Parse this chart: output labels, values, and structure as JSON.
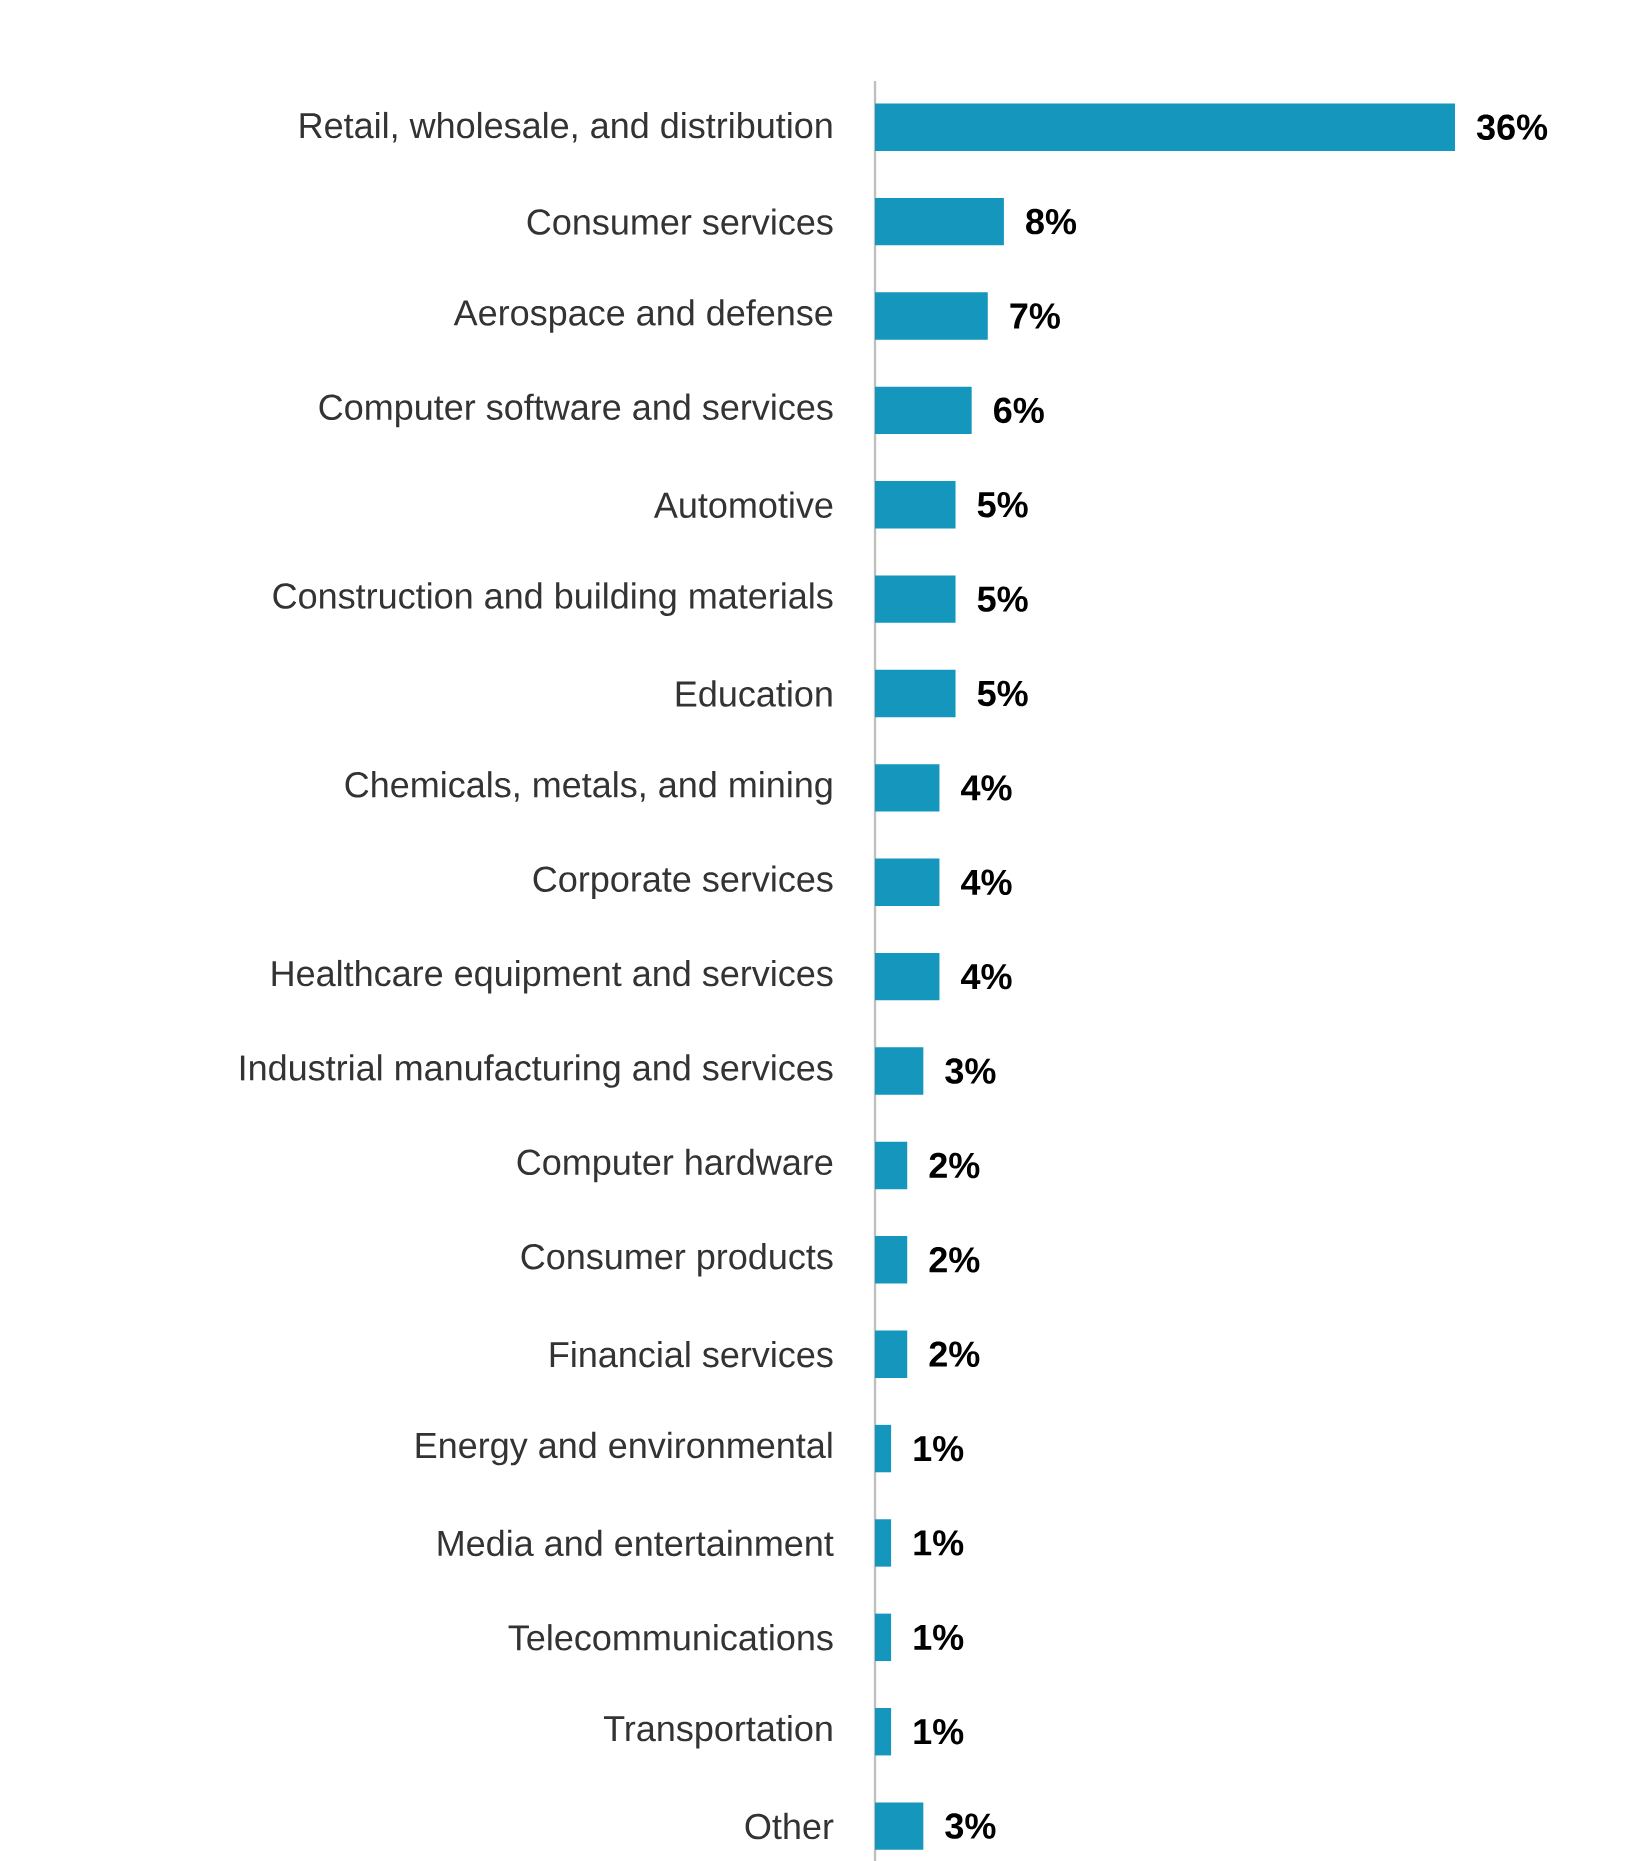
{
  "chart_data": {
    "type": "bar",
    "orientation": "horizontal",
    "categories": [
      "Retail, wholesale, and distribution",
      "Consumer services",
      "Aerospace and defense",
      "Computer software and services",
      "Automotive",
      "Construction and building materials",
      "Education",
      "Chemicals, metals, and mining",
      "Corporate services",
      "Healthcare equipment and services",
      "Industrial manufacturing and services",
      "Computer hardware",
      "Consumer products",
      "Financial services",
      "Energy and environmental",
      "Media and entertainment",
      "Telecommunications",
      "Transportation",
      "Other"
    ],
    "values": [
      36,
      8,
      7,
      6,
      5,
      5,
      5,
      4,
      4,
      4,
      3,
      2,
      2,
      2,
      1,
      1,
      1,
      1,
      3
    ],
    "value_labels": [
      "36%",
      "8%",
      "7%",
      "6%",
      "5%",
      "5%",
      "5%",
      "4%",
      "4%",
      "4%",
      "3%",
      "2%",
      "2%",
      "2%",
      "1%",
      "1%",
      "1%",
      "1%",
      "3%"
    ],
    "color": "#1596bd"
  }
}
